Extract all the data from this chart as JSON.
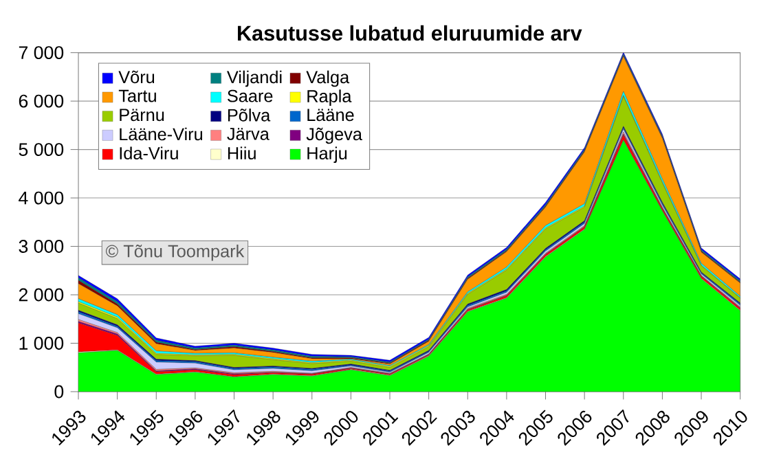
{
  "chart_data": {
    "type": "area",
    "stacked": true,
    "title": "Kasutusse lubatud eluruumide arv",
    "categories": [
      "1993",
      "1994",
      "1995",
      "1996",
      "1997",
      "1998",
      "1999",
      "2000",
      "2001",
      "2002",
      "2003",
      "2004",
      "2005",
      "2006",
      "2007",
      "2008",
      "2009",
      "2010"
    ],
    "ylim": [
      0,
      7000
    ],
    "yticks": [
      0,
      {
        "value": 1000,
        "label": "1 000"
      },
      {
        "value": 2000,
        "label": "2 000"
      },
      {
        "value": 3000,
        "label": "3 000"
      },
      {
        "value": 4000,
        "label": "4 000"
      },
      {
        "value": 5000,
        "label": "5 000"
      },
      {
        "value": 6000,
        "label": "6 000"
      },
      {
        "value": 7000,
        "label": "7 000"
      }
    ],
    "grid": "y",
    "legend": "top left",
    "marker": "none",
    "annotations": [
      "© Tõnu Toompark"
    ],
    "series": [
      {
        "name": "Harju",
        "color": "#00ff00",
        "values": [
          800,
          850,
          350,
          400,
          300,
          350,
          320,
          450,
          330,
          730,
          1650,
          1930,
          2780,
          3350,
          5190,
          3730,
          2330,
          1670
        ]
      },
      {
        "name": "Hiiu",
        "color": "#ffffcc",
        "values": [
          20,
          10,
          10,
          10,
          10,
          10,
          10,
          10,
          10,
          10,
          10,
          10,
          10,
          10,
          10,
          10,
          10,
          10
        ]
      },
      {
        "name": "Ida-Viru",
        "color": "#ff0000",
        "values": [
          600,
          300,
          50,
          40,
          40,
          30,
          30,
          20,
          20,
          20,
          30,
          40,
          40,
          40,
          100,
          40,
          40,
          40
        ]
      },
      {
        "name": "Jõgeva",
        "color": "#800080",
        "values": [
          30,
          30,
          20,
          20,
          20,
          10,
          10,
          10,
          10,
          10,
          10,
          10,
          10,
          10,
          20,
          10,
          10,
          10
        ]
      },
      {
        "name": "Järva",
        "color": "#ff8080",
        "values": [
          40,
          30,
          30,
          20,
          20,
          20,
          10,
          10,
          10,
          10,
          20,
          20,
          20,
          20,
          40,
          20,
          10,
          20
        ]
      },
      {
        "name": "Lääne-Viru",
        "color": "#ccccff",
        "values": [
          120,
          100,
          150,
          100,
          60,
          60,
          50,
          30,
          20,
          30,
          30,
          40,
          40,
          40,
          60,
          40,
          30,
          30
        ]
      },
      {
        "name": "Lääne",
        "color": "#0066cc",
        "values": [
          40,
          30,
          30,
          30,
          30,
          30,
          30,
          20,
          20,
          20,
          30,
          30,
          30,
          30,
          30,
          30,
          20,
          30
        ]
      },
      {
        "name": "Põlva",
        "color": "#000080",
        "values": [
          30,
          30,
          30,
          20,
          20,
          20,
          20,
          20,
          20,
          20,
          30,
          30,
          30,
          30,
          30,
          30,
          20,
          20
        ]
      },
      {
        "name": "Pärnu",
        "color": "#99cc00",
        "values": [
          150,
          130,
          100,
          100,
          250,
          130,
          100,
          60,
          60,
          80,
          200,
          400,
          400,
          280,
          620,
          400,
          130,
          100
        ]
      },
      {
        "name": "Rapla",
        "color": "#ffff00",
        "values": [
          30,
          30,
          20,
          20,
          20,
          20,
          20,
          20,
          20,
          20,
          20,
          20,
          20,
          20,
          20,
          20,
          10,
          10
        ]
      },
      {
        "name": "Saare",
        "color": "#00ffff",
        "values": [
          60,
          50,
          50,
          30,
          30,
          30,
          30,
          20,
          20,
          20,
          30,
          40,
          50,
          50,
          80,
          60,
          40,
          30
        ]
      },
      {
        "name": "Tartu",
        "color": "#ff9900",
        "values": [
          310,
          180,
          150,
          60,
          100,
          100,
          50,
          10,
          30,
          70,
          260,
          320,
          380,
          1070,
          720,
          840,
          230,
          270
        ]
      },
      {
        "name": "Valga",
        "color": "#800000",
        "values": [
          70,
          40,
          30,
          20,
          30,
          20,
          20,
          20,
          20,
          20,
          20,
          20,
          20,
          20,
          20,
          20,
          20,
          20
        ]
      },
      {
        "name": "Viljandi",
        "color": "#008080",
        "values": [
          50,
          50,
          40,
          30,
          30,
          30,
          30,
          20,
          20,
          20,
          30,
          30,
          30,
          30,
          30,
          30,
          30,
          30
        ]
      },
      {
        "name": "Võru",
        "color": "#0000ff",
        "values": [
          50,
          60,
          50,
          40,
          40,
          40,
          40,
          30,
          40,
          40,
          40,
          40,
          50,
          40,
          40,
          40,
          40,
          40
        ]
      }
    ]
  }
}
